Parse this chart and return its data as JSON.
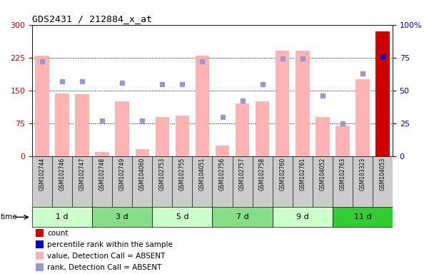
{
  "title": "GDS2431 / 212884_x_at",
  "samples": [
    "GSM102744",
    "GSM102746",
    "GSM102747",
    "GSM102748",
    "GSM102749",
    "GSM104060",
    "GSM102753",
    "GSM102755",
    "GSM104051",
    "GSM102756",
    "GSM102757",
    "GSM102758",
    "GSM102760",
    "GSM102761",
    "GSM104052",
    "GSM102763",
    "GSM103323",
    "GSM104053"
  ],
  "bar_values": [
    230,
    143,
    142,
    10,
    125,
    16,
    90,
    92,
    230,
    25,
    120,
    125,
    240,
    240,
    90,
    70,
    175,
    285
  ],
  "rank_values": [
    72,
    57,
    57,
    27,
    56,
    27,
    55,
    55,
    72,
    30,
    42,
    55,
    74,
    74,
    46,
    25,
    63,
    76
  ],
  "bar_color_normal": "#FFB3B3",
  "bar_color_highlight": "#CC0000",
  "dot_color_normal": "#9999CC",
  "dot_color_highlight": "#0000CC",
  "highlight_index": 17,
  "groups": [
    {
      "label": "1 d",
      "start": 0,
      "end": 3,
      "color": "#CCFFCC"
    },
    {
      "label": "3 d",
      "start": 3,
      "end": 6,
      "color": "#88DD88"
    },
    {
      "label": "5 d",
      "start": 6,
      "end": 9,
      "color": "#CCFFCC"
    },
    {
      "label": "7 d",
      "start": 9,
      "end": 12,
      "color": "#88DD88"
    },
    {
      "label": "9 d",
      "start": 12,
      "end": 15,
      "color": "#CCFFCC"
    },
    {
      "label": "11 d",
      "start": 15,
      "end": 18,
      "color": "#33CC33"
    }
  ],
  "left_ylim": [
    0,
    300
  ],
  "right_ylim": [
    0,
    100
  ],
  "left_yticks": [
    0,
    75,
    150,
    225,
    300
  ],
  "right_yticks": [
    0,
    25,
    50,
    75,
    100
  ],
  "right_yticklabels": [
    "0",
    "25",
    "50",
    "75",
    "100%"
  ],
  "bg_color": "#FFFFFF",
  "plot_bg_color": "#FFFFFF",
  "label_bg_color": "#CCCCCC",
  "left_tick_color": "#CC0000",
  "right_tick_color": "#0000CC"
}
